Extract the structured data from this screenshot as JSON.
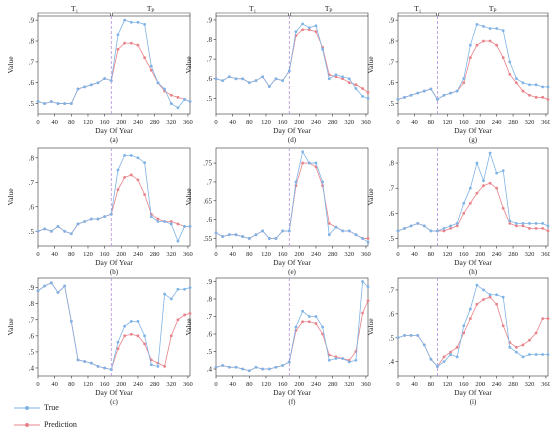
{
  "legend": {
    "true_label": "True",
    "pred_label": "Prediction",
    "true_color": "#7fb3e6",
    "pred_color": "#e8838a"
  },
  "chart_data": [
    {
      "id": "a",
      "type": "line",
      "caption": "(a)",
      "xlabel": "Day Of Year",
      "ylabel": "Value",
      "xlim": [
        0,
        365
      ],
      "ylim": [
        0.45,
        0.92
      ],
      "yticks": [
        0.5,
        0.6,
        0.7,
        0.8,
        0.9
      ],
      "xticks": [
        0,
        40,
        80,
        120,
        160,
        200,
        240,
        280,
        320,
        360
      ],
      "split_x": 176,
      "region_left": "T₁",
      "region_right": "Tₚ",
      "x": [
        0,
        16,
        32,
        48,
        64,
        80,
        96,
        112,
        128,
        144,
        160,
        176,
        192,
        208,
        224,
        240,
        256,
        272,
        288,
        304,
        320,
        336,
        352,
        365
      ],
      "series": [
        {
          "name": "True",
          "values": [
            0.51,
            0.5,
            0.51,
            0.5,
            0.5,
            0.5,
            0.57,
            0.58,
            0.59,
            0.6,
            0.62,
            0.61,
            0.83,
            0.9,
            0.89,
            0.89,
            0.88,
            0.68,
            0.6,
            0.57,
            0.5,
            0.48,
            0.52,
            0.51
          ]
        },
        {
          "name": "Prediction",
          "values": [
            0.51,
            0.5,
            0.51,
            0.5,
            0.5,
            0.5,
            0.57,
            0.58,
            0.59,
            0.6,
            0.62,
            0.61,
            0.76,
            0.79,
            0.79,
            0.78,
            0.72,
            0.66,
            0.6,
            0.56,
            0.54,
            0.53,
            0.52,
            0.51
          ]
        }
      ]
    },
    {
      "id": "d",
      "type": "line",
      "caption": "(d)",
      "xlabel": "Day Of Year",
      "ylabel": "Value",
      "xlim": [
        0,
        365
      ],
      "ylim": [
        0.42,
        0.92
      ],
      "yticks": [
        0.5,
        0.6,
        0.7,
        0.8,
        0.9
      ],
      "xticks": [
        0,
        40,
        80,
        120,
        160,
        200,
        240,
        280,
        320,
        360
      ],
      "split_x": 176,
      "region_left": "T₁",
      "region_right": "Tₚ",
      "x": [
        0,
        16,
        32,
        48,
        64,
        80,
        96,
        112,
        128,
        144,
        160,
        176,
        192,
        208,
        224,
        240,
        256,
        272,
        288,
        304,
        320,
        336,
        352,
        365
      ],
      "series": [
        {
          "name": "True",
          "values": [
            0.6,
            0.59,
            0.61,
            0.6,
            0.6,
            0.58,
            0.59,
            0.61,
            0.56,
            0.6,
            0.59,
            0.64,
            0.84,
            0.88,
            0.86,
            0.87,
            0.75,
            0.6,
            0.62,
            0.61,
            0.6,
            0.55,
            0.51,
            0.5
          ]
        },
        {
          "name": "Prediction",
          "values": [
            0.6,
            0.59,
            0.61,
            0.6,
            0.6,
            0.58,
            0.59,
            0.61,
            0.56,
            0.6,
            0.59,
            0.64,
            0.82,
            0.85,
            0.85,
            0.84,
            0.76,
            0.62,
            0.61,
            0.6,
            0.58,
            0.57,
            0.55,
            0.53
          ]
        }
      ]
    },
    {
      "id": "g",
      "type": "line",
      "caption": "(g)",
      "xlabel": "Day Of Year",
      "ylabel": "Value",
      "xlim": [
        0,
        365
      ],
      "ylim": [
        0.45,
        0.92
      ],
      "yticks": [
        0.5,
        0.6,
        0.7,
        0.8,
        0.9
      ],
      "xticks": [
        0,
        40,
        80,
        120,
        160,
        200,
        240,
        280,
        320,
        360
      ],
      "split_x": 96,
      "region_left": "T₁",
      "region_right": "Tₚ",
      "x": [
        0,
        16,
        32,
        48,
        64,
        80,
        96,
        112,
        128,
        144,
        160,
        176,
        192,
        208,
        224,
        240,
        256,
        272,
        288,
        304,
        320,
        336,
        352,
        365
      ],
      "series": [
        {
          "name": "True",
          "values": [
            0.52,
            0.53,
            0.54,
            0.55,
            0.56,
            0.57,
            0.52,
            0.54,
            0.55,
            0.56,
            0.62,
            0.78,
            0.88,
            0.87,
            0.86,
            0.86,
            0.85,
            0.7,
            0.62,
            0.6,
            0.59,
            0.59,
            0.58,
            0.58
          ]
        },
        {
          "name": "Prediction",
          "values": [
            0.52,
            0.53,
            0.54,
            0.55,
            0.56,
            0.57,
            0.52,
            0.54,
            0.55,
            0.56,
            0.6,
            0.72,
            0.78,
            0.8,
            0.8,
            0.78,
            0.72,
            0.64,
            0.6,
            0.56,
            0.54,
            0.53,
            0.53,
            0.52
          ]
        }
      ]
    },
    {
      "id": "b",
      "type": "line",
      "caption": "(b)",
      "xlabel": "Day Of Year",
      "ylabel": "Value",
      "xlim": [
        0,
        365
      ],
      "ylim": [
        0.44,
        0.84
      ],
      "yticks": [
        0.5,
        0.6,
        0.7,
        0.8
      ],
      "xticks": [
        0,
        40,
        80,
        120,
        160,
        200,
        240,
        280,
        320,
        360
      ],
      "split_x": 176,
      "region_left": "",
      "region_right": "",
      "x": [
        0,
        16,
        32,
        48,
        64,
        80,
        96,
        112,
        128,
        144,
        160,
        176,
        192,
        208,
        224,
        240,
        256,
        272,
        288,
        304,
        320,
        336,
        352,
        365
      ],
      "series": [
        {
          "name": "True",
          "values": [
            0.5,
            0.51,
            0.5,
            0.52,
            0.5,
            0.49,
            0.53,
            0.54,
            0.55,
            0.55,
            0.56,
            0.57,
            0.75,
            0.81,
            0.81,
            0.8,
            0.78,
            0.56,
            0.54,
            0.54,
            0.53,
            0.46,
            0.52,
            0.52
          ]
        },
        {
          "name": "Prediction",
          "values": [
            0.5,
            0.51,
            0.5,
            0.52,
            0.5,
            0.49,
            0.53,
            0.54,
            0.55,
            0.55,
            0.56,
            0.57,
            0.67,
            0.72,
            0.73,
            0.71,
            0.65,
            0.57,
            0.55,
            0.54,
            0.54,
            0.53,
            0.52,
            0.52
          ]
        }
      ]
    },
    {
      "id": "e",
      "type": "line",
      "caption": "(e)",
      "xlabel": "Day Of Year",
      "ylabel": "Value",
      "xlim": [
        0,
        365
      ],
      "ylim": [
        0.53,
        0.79
      ],
      "yticks": [
        0.55,
        0.6,
        0.65,
        0.7,
        0.75
      ],
      "xticks": [
        0,
        40,
        80,
        120,
        160,
        200,
        240,
        280,
        320,
        360
      ],
      "split_x": 176,
      "region_left": "",
      "region_right": "",
      "x": [
        0,
        16,
        32,
        48,
        64,
        80,
        96,
        112,
        128,
        144,
        160,
        176,
        192,
        208,
        224,
        240,
        256,
        272,
        288,
        304,
        320,
        336,
        352,
        365
      ],
      "series": [
        {
          "name": "True",
          "values": [
            0.565,
            0.555,
            0.56,
            0.56,
            0.555,
            0.55,
            0.56,
            0.57,
            0.55,
            0.55,
            0.57,
            0.57,
            0.7,
            0.78,
            0.75,
            0.75,
            0.7,
            0.56,
            0.58,
            0.57,
            0.57,
            0.56,
            0.55,
            0.54
          ]
        },
        {
          "name": "Prediction",
          "values": [
            0.565,
            0.555,
            0.56,
            0.56,
            0.555,
            0.55,
            0.56,
            0.57,
            0.55,
            0.55,
            0.57,
            0.57,
            0.69,
            0.75,
            0.75,
            0.74,
            0.69,
            0.59,
            0.58,
            0.57,
            0.57,
            0.56,
            0.55,
            0.55
          ]
        }
      ]
    },
    {
      "id": "h",
      "type": "line",
      "caption": "(h)",
      "xlabel": "Day Of Year",
      "ylabel": "Value",
      "xlim": [
        0,
        365
      ],
      "ylim": [
        0.47,
        0.86
      ],
      "yticks": [
        0.5,
        0.6,
        0.7,
        0.8
      ],
      "xticks": [
        0,
        40,
        80,
        120,
        160,
        200,
        240,
        280,
        320,
        360
      ],
      "split_x": 96,
      "region_left": "",
      "region_right": "",
      "x": [
        0,
        16,
        32,
        48,
        64,
        80,
        96,
        112,
        128,
        144,
        160,
        176,
        192,
        208,
        224,
        240,
        256,
        272,
        288,
        304,
        320,
        336,
        352,
        365
      ],
      "series": [
        {
          "name": "True",
          "values": [
            0.53,
            0.54,
            0.55,
            0.56,
            0.55,
            0.53,
            0.53,
            0.54,
            0.55,
            0.56,
            0.64,
            0.7,
            0.8,
            0.73,
            0.84,
            0.76,
            0.77,
            0.57,
            0.56,
            0.56,
            0.56,
            0.56,
            0.56,
            0.55
          ]
        },
        {
          "name": "Prediction",
          "values": [
            0.53,
            0.54,
            0.55,
            0.56,
            0.55,
            0.53,
            0.53,
            0.53,
            0.54,
            0.55,
            0.6,
            0.64,
            0.68,
            0.71,
            0.72,
            0.7,
            0.62,
            0.56,
            0.55,
            0.55,
            0.54,
            0.54,
            0.54,
            0.53
          ]
        }
      ]
    },
    {
      "id": "c",
      "type": "line",
      "caption": "(c)",
      "xlabel": "Day Of Year",
      "ylabel": "Value",
      "xlim": [
        0,
        365
      ],
      "ylim": [
        0.35,
        0.96
      ],
      "yticks": [
        0.4,
        0.5,
        0.6,
        0.7,
        0.8,
        0.9
      ],
      "xticks": [
        0,
        40,
        80,
        120,
        160,
        200,
        240,
        280,
        320,
        360
      ],
      "split_x": 176,
      "region_left": "",
      "region_right": "",
      "x": [
        0,
        16,
        32,
        48,
        64,
        80,
        96,
        112,
        128,
        144,
        160,
        176,
        192,
        208,
        224,
        240,
        256,
        272,
        288,
        304,
        320,
        336,
        352,
        365
      ],
      "series": [
        {
          "name": "True",
          "values": [
            0.88,
            0.91,
            0.93,
            0.87,
            0.91,
            0.69,
            0.45,
            0.44,
            0.43,
            0.41,
            0.4,
            0.39,
            0.56,
            0.66,
            0.69,
            0.69,
            0.6,
            0.42,
            0.41,
            0.86,
            0.83,
            0.89,
            0.89,
            0.9
          ]
        },
        {
          "name": "Prediction",
          "values": [
            0.88,
            0.91,
            0.93,
            0.87,
            0.91,
            0.69,
            0.45,
            0.44,
            0.43,
            0.41,
            0.4,
            0.39,
            0.52,
            0.6,
            0.61,
            0.6,
            0.55,
            0.45,
            0.43,
            0.41,
            0.6,
            0.7,
            0.73,
            0.74
          ]
        }
      ]
    },
    {
      "id": "f",
      "type": "line",
      "caption": "(f)",
      "xlabel": "Day Of Year",
      "ylabel": "Value",
      "xlim": [
        0,
        365
      ],
      "ylim": [
        0.36,
        0.92
      ],
      "yticks": [
        0.4,
        0.5,
        0.6,
        0.7,
        0.8,
        0.9
      ],
      "xticks": [
        0,
        40,
        80,
        120,
        160,
        200,
        240,
        280,
        320,
        360
      ],
      "split_x": 176,
      "region_left": "",
      "region_right": "",
      "x": [
        0,
        16,
        32,
        48,
        64,
        80,
        96,
        112,
        128,
        144,
        160,
        176,
        192,
        208,
        224,
        240,
        256,
        272,
        288,
        304,
        320,
        336,
        352,
        365
      ],
      "series": [
        {
          "name": "True",
          "values": [
            0.41,
            0.42,
            0.41,
            0.41,
            0.4,
            0.39,
            0.41,
            0.4,
            0.4,
            0.41,
            0.42,
            0.44,
            0.64,
            0.73,
            0.7,
            0.7,
            0.64,
            0.45,
            0.46,
            0.46,
            0.44,
            0.45,
            0.9,
            0.87
          ]
        },
        {
          "name": "Prediction",
          "values": [
            0.41,
            0.42,
            0.41,
            0.41,
            0.4,
            0.39,
            0.41,
            0.4,
            0.4,
            0.41,
            0.42,
            0.44,
            0.62,
            0.67,
            0.67,
            0.66,
            0.6,
            0.48,
            0.47,
            0.46,
            0.45,
            0.5,
            0.72,
            0.79
          ]
        }
      ]
    },
    {
      "id": "i",
      "type": "line",
      "caption": "(i)",
      "xlabel": "Day Of Year",
      "ylabel": "Value",
      "xlim": [
        0,
        365
      ],
      "ylim": [
        0.34,
        0.75
      ],
      "yticks": [
        0.4,
        0.5,
        0.6,
        0.7
      ],
      "xticks": [
        0,
        40,
        80,
        120,
        160,
        200,
        240,
        280,
        320,
        360
      ],
      "split_x": 96,
      "region_left": "",
      "region_right": "",
      "x": [
        0,
        16,
        32,
        48,
        64,
        80,
        96,
        112,
        128,
        144,
        160,
        176,
        192,
        208,
        224,
        240,
        256,
        272,
        288,
        304,
        320,
        336,
        352,
        365
      ],
      "series": [
        {
          "name": "True",
          "values": [
            0.5,
            0.51,
            0.51,
            0.51,
            0.47,
            0.41,
            0.38,
            0.4,
            0.43,
            0.42,
            0.55,
            0.62,
            0.72,
            0.7,
            0.68,
            0.68,
            0.67,
            0.46,
            0.44,
            0.42,
            0.43,
            0.43,
            0.43,
            0.43
          ]
        },
        {
          "name": "Prediction",
          "values": [
            0.5,
            0.51,
            0.51,
            0.51,
            0.47,
            0.41,
            0.38,
            0.42,
            0.44,
            0.46,
            0.52,
            0.58,
            0.64,
            0.66,
            0.67,
            0.64,
            0.55,
            0.48,
            0.46,
            0.47,
            0.49,
            0.52,
            0.58,
            0.58
          ]
        }
      ]
    }
  ]
}
